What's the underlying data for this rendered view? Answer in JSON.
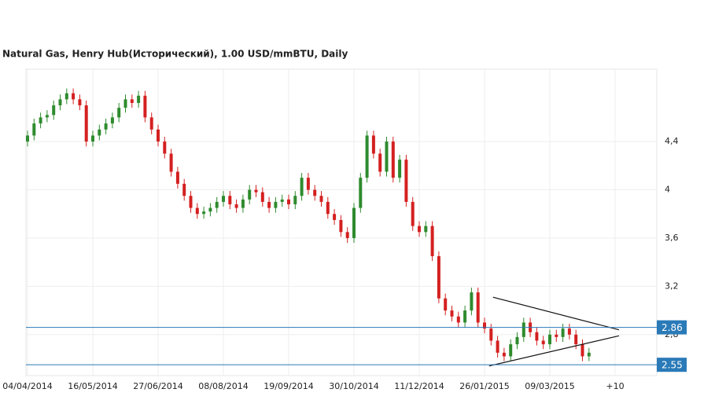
{
  "chart_data": {
    "type": "candlestick",
    "title": "Natural Gas, Henry Hub(Исторический), 1.00 USD/mmBTU, Daily",
    "categories": [
      "04/04/2014",
      null,
      null,
      null,
      null,
      null,
      null,
      null,
      null,
      null,
      "16/05/2014",
      null,
      null,
      null,
      null,
      null,
      null,
      null,
      null,
      null,
      "27/06/2014",
      null,
      null,
      null,
      null,
      null,
      null,
      null,
      null,
      null,
      "08/08/2014",
      null,
      null,
      null,
      null,
      null,
      null,
      null,
      null,
      null,
      "19/09/2014",
      null,
      null,
      null,
      null,
      null,
      null,
      null,
      null,
      null,
      "30/10/2014",
      null,
      null,
      null,
      null,
      null,
      null,
      null,
      null,
      null,
      "11/12/2014",
      null,
      null,
      null,
      null,
      null,
      null,
      null,
      null,
      null,
      "26/01/2015",
      null,
      null,
      null,
      null,
      null,
      null,
      null,
      null,
      null,
      "09/03/2015",
      null,
      null,
      null,
      null,
      null,
      null,
      null,
      null,
      null,
      "+10"
    ],
    "open": [
      4.4,
      4.45,
      4.55,
      4.6,
      4.62,
      4.7,
      4.75,
      4.8,
      4.75,
      4.7,
      4.4,
      4.45,
      4.5,
      4.55,
      4.6,
      4.68,
      4.75,
      4.72,
      4.78,
      4.6,
      4.5,
      4.4,
      4.3,
      4.15,
      4.05,
      3.95,
      3.85,
      3.8,
      3.82,
      3.85,
      3.9,
      3.95,
      3.88,
      3.85,
      3.92,
      4.0,
      3.98,
      3.9,
      3.85,
      3.9,
      3.92,
      3.88,
      3.95,
      4.1,
      4.0,
      3.95,
      3.9,
      3.8,
      3.75,
      3.65,
      3.6,
      3.85,
      4.1,
      4.45,
      4.3,
      4.15,
      4.4,
      4.1,
      4.25,
      3.9,
      3.7,
      3.65,
      3.7,
      3.45,
      3.1,
      3.0,
      2.95,
      2.9,
      3.0,
      3.15,
      2.9,
      2.85,
      2.75,
      2.65,
      2.62,
      2.72,
      2.78,
      2.9,
      2.82,
      2.75,
      2.72,
      2.8,
      2.78,
      2.85,
      2.8,
      2.72,
      2.62,
      null,
      null,
      null,
      null
    ],
    "high": [
      4.49,
      4.59,
      4.64,
      4.66,
      4.74,
      4.79,
      4.84,
      4.84,
      4.79,
      4.74,
      4.49,
      4.54,
      4.59,
      4.64,
      4.72,
      4.79,
      4.79,
      4.82,
      4.82,
      4.64,
      4.54,
      4.44,
      4.34,
      4.19,
      4.09,
      3.99,
      3.89,
      3.86,
      3.89,
      3.94,
      3.99,
      3.99,
      3.92,
      3.96,
      4.04,
      4.04,
      4.02,
      3.94,
      3.94,
      3.96,
      3.96,
      3.99,
      4.14,
      4.14,
      4.04,
      3.99,
      3.94,
      3.84,
      3.79,
      3.69,
      3.89,
      4.14,
      4.49,
      4.49,
      4.34,
      4.44,
      4.44,
      4.29,
      4.29,
      3.94,
      3.74,
      3.74,
      3.74,
      3.49,
      3.14,
      3.04,
      2.99,
      3.04,
      3.19,
      3.19,
      2.94,
      2.89,
      2.79,
      2.69,
      2.76,
      2.82,
      2.94,
      2.94,
      2.86,
      2.79,
      2.84,
      2.84,
      2.89,
      2.89,
      2.84,
      2.76,
      2.69,
      null,
      null,
      null,
      null
    ],
    "low": [
      4.36,
      4.41,
      4.51,
      4.56,
      4.58,
      4.66,
      4.71,
      4.71,
      4.66,
      4.36,
      4.36,
      4.41,
      4.46,
      4.51,
      4.56,
      4.64,
      4.68,
      4.68,
      4.56,
      4.46,
      4.36,
      4.26,
      4.11,
      4.01,
      3.91,
      3.81,
      3.76,
      3.76,
      3.78,
      3.81,
      3.86,
      3.84,
      3.81,
      3.81,
      3.88,
      3.94,
      3.86,
      3.81,
      3.81,
      3.86,
      3.84,
      3.84,
      3.91,
      3.96,
      3.91,
      3.86,
      3.76,
      3.71,
      3.61,
      3.56,
      3.56,
      3.81,
      4.06,
      4.26,
      4.11,
      4.11,
      4.06,
      4.06,
      3.86,
      3.66,
      3.61,
      3.61,
      3.41,
      3.06,
      2.96,
      2.91,
      2.86,
      2.86,
      2.96,
      2.86,
      2.81,
      2.71,
      2.61,
      2.58,
      2.58,
      2.68,
      2.74,
      2.78,
      2.71,
      2.68,
      2.68,
      2.74,
      2.74,
      2.76,
      2.68,
      2.58,
      2.58,
      null,
      null,
      null,
      null
    ],
    "close": [
      4.45,
      4.55,
      4.6,
      4.62,
      4.7,
      4.75,
      4.8,
      4.75,
      4.7,
      4.4,
      4.45,
      4.5,
      4.55,
      4.6,
      4.68,
      4.75,
      4.72,
      4.78,
      4.6,
      4.5,
      4.4,
      4.3,
      4.15,
      4.05,
      3.95,
      3.85,
      3.8,
      3.82,
      3.85,
      3.9,
      3.95,
      3.88,
      3.85,
      3.92,
      4.0,
      3.98,
      3.9,
      3.85,
      3.9,
      3.92,
      3.88,
      3.95,
      4.1,
      4.0,
      3.95,
      3.9,
      3.8,
      3.75,
      3.65,
      3.6,
      3.85,
      4.1,
      4.45,
      4.3,
      4.15,
      4.4,
      4.1,
      4.25,
      3.9,
      3.7,
      3.65,
      3.7,
      3.45,
      3.1,
      3.0,
      2.95,
      2.9,
      3.0,
      3.15,
      2.9,
      2.85,
      2.75,
      2.65,
      2.62,
      2.72,
      2.78,
      2.9,
      2.82,
      2.75,
      2.72,
      2.8,
      2.78,
      2.85,
      2.8,
      2.72,
      2.62,
      2.65,
      null,
      null,
      null,
      null
    ],
    "up_color": "#2e8b2e",
    "down_color": "#d42020",
    "ylim": [
      2.46,
      5.0
    ],
    "yticks": [
      {
        "value": 2.8,
        "label": "2,8"
      },
      {
        "value": 3.2,
        "label": "3,2"
      },
      {
        "value": 3.6,
        "label": "3,6"
      },
      4,
      {
        "value": 4.4,
        "label": "4,4"
      }
    ],
    "hlines": [
      2.86,
      2.55
    ],
    "hline_color": "#2a7ab8",
    "trendlines": [
      {
        "x": [
          71.3,
          90.6
        ],
        "y": [
          3.11,
          2.84
        ]
      },
      {
        "x": [
          70.7,
          90.6
        ],
        "y": [
          2.54,
          2.79
        ]
      }
    ],
    "grid": true
  }
}
